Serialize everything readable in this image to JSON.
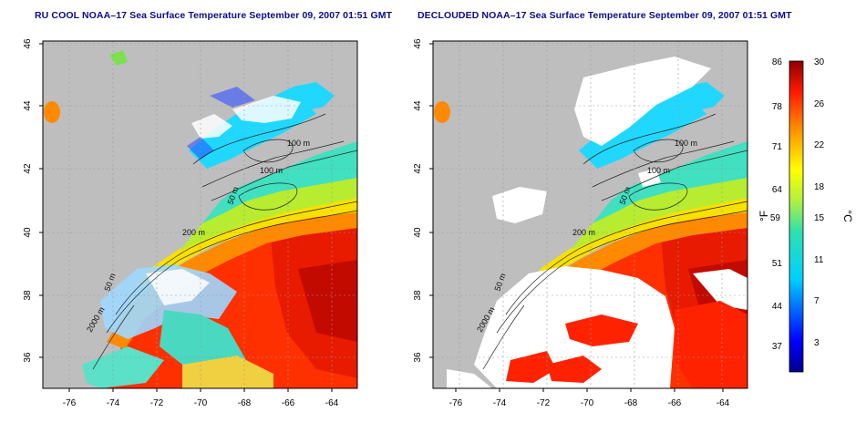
{
  "titles": {
    "left": "RU COOL NOAA–17 Sea Surface Temperature September 09, 2007 01:51 GMT",
    "right": "DECLOUDED NOAA–17 Sea Surface Temperature September 09, 2007 01:51 GMT"
  },
  "axes": {
    "lat_labels": [
      "46",
      "44",
      "42",
      "40",
      "38",
      "36"
    ],
    "lon_labels": [
      "-76",
      "-74",
      "-72",
      "-70",
      "-68",
      "-66",
      "-64"
    ]
  },
  "contours": {
    "left": [
      "100 m",
      "100 m",
      "50 m",
      "200 m",
      "50 m",
      "2000 m"
    ],
    "right": [
      "100 m",
      "100 m",
      "50 m",
      "200 m",
      "50 m",
      "2000 m"
    ]
  },
  "colorbar": {
    "fahrenheit_ticks": [
      "86",
      "78",
      "71",
      "64",
      "59",
      "51",
      "44",
      "37"
    ],
    "celsius_ticks": [
      "30",
      "26",
      "22",
      "18",
      "15",
      "11",
      "7",
      "3"
    ],
    "fahrenheit_unit": "°F",
    "celsius_unit": "°C"
  },
  "colors": {
    "land": "#bebebe",
    "cloud": "#ffffff",
    "title": "#0b0b8c"
  }
}
